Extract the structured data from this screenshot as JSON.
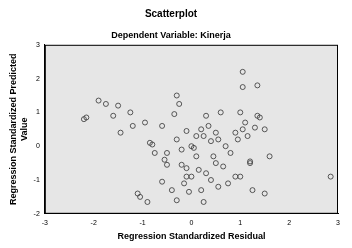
{
  "chart_data": {
    "type": "scatter",
    "title": "Scatterplot",
    "subtitle": "Dependent Variable: Kinerja",
    "x_label": "Regression Standardized Residual",
    "y_label": "Regression Standardized Predicted Value",
    "x": [
      -2.2,
      -2.15,
      -1.9,
      -1.75,
      -1.6,
      -1.5,
      -1.45,
      -1.25,
      -1.2,
      -0.95,
      -0.85,
      -0.8,
      -0.75,
      -0.6,
      -0.55,
      -0.5,
      -0.5,
      -0.35,
      -0.3,
      -0.25,
      -0.3,
      -0.2,
      -0.1,
      0.0,
      0.05,
      0.1,
      0.1,
      0.2,
      0.25,
      0.3,
      0.35,
      0.4,
      0.45,
      0.5,
      0.55,
      0.6,
      0.65,
      0.7,
      0.75,
      0.8,
      0.9,
      1.0,
      1.0,
      1.05,
      1.05,
      1.1,
      1.15,
      1.2,
      1.25,
      1.3,
      1.35,
      1.35,
      1.4,
      1.5,
      1.5,
      1.6,
      2.85,
      -0.1,
      -0.15,
      -0.05,
      0.0,
      0.2,
      0.3,
      0.4,
      -0.4,
      -0.3,
      -1.1,
      -1.05,
      -0.9,
      -0.2,
      -0.1,
      0.15,
      1.2,
      0.5,
      0.55,
      0.9,
      0.95,
      1.05,
      -0.6,
      0.25
    ],
    "values": [
      0.8,
      0.85,
      1.35,
      1.25,
      0.9,
      1.2,
      0.4,
      1.0,
      0.6,
      0.7,
      0.1,
      0.05,
      -0.2,
      0.6,
      -0.4,
      -0.55,
      -0.2,
      0.95,
      1.5,
      1.25,
      0.2,
      -0.1,
      0.45,
      0.0,
      -0.05,
      -0.3,
      0.3,
      0.5,
      0.3,
      0.9,
      0.6,
      0.15,
      -0.3,
      0.4,
      0.2,
      1.0,
      -0.6,
      0.0,
      -1.1,
      -0.2,
      0.4,
      1.0,
      -0.9,
      2.2,
      1.75,
      0.7,
      0.3,
      -0.5,
      -1.3,
      0.55,
      1.8,
      0.9,
      0.85,
      0.5,
      -1.4,
      -0.3,
      -0.9,
      -0.9,
      -1.1,
      -1.35,
      -0.9,
      -1.3,
      -0.8,
      -1.0,
      -1.3,
      -1.6,
      -1.4,
      -1.5,
      -1.65,
      -0.55,
      -0.65,
      -0.7,
      -0.45,
      -0.5,
      -1.2,
      -0.9,
      0.2,
      0.5,
      -1.05,
      -1.65
    ],
    "color": "#333333",
    "marker": "circle",
    "xlim": [
      -3,
      3
    ],
    "xticks": [
      -3,
      -2,
      -1,
      0,
      1,
      2,
      3
    ],
    "ylim": [
      -2,
      3
    ],
    "yticks": [
      -2,
      -1,
      0,
      1,
      2,
      3
    ],
    "grid": false
  }
}
